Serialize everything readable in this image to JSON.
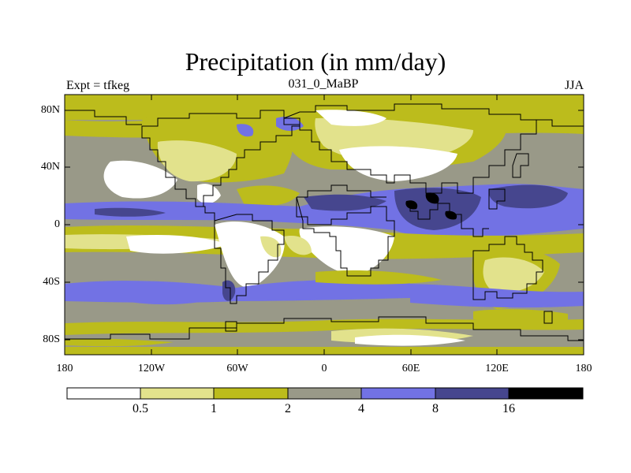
{
  "title": "Precipitation (in mm/day)",
  "subtitle_left": "Expt = tfkeg",
  "subtitle_center": "031_0_MaBP",
  "subtitle_right": "JJA",
  "axes": {
    "x_ticks": [
      "180",
      "120W",
      "60W",
      "0",
      "60E",
      "120E",
      "180"
    ],
    "y_ticks": [
      "80N",
      "40N",
      "0",
      "40S",
      "80S"
    ]
  },
  "colorbar": {
    "labels": [
      "0.5",
      "1",
      "2",
      "4",
      "8",
      "16"
    ],
    "colors": [
      "#ffffff",
      "#e2e28c",
      "#bcbc1c",
      "#999988",
      "#7272e4",
      "#46468e",
      "#000000"
    ]
  }
}
